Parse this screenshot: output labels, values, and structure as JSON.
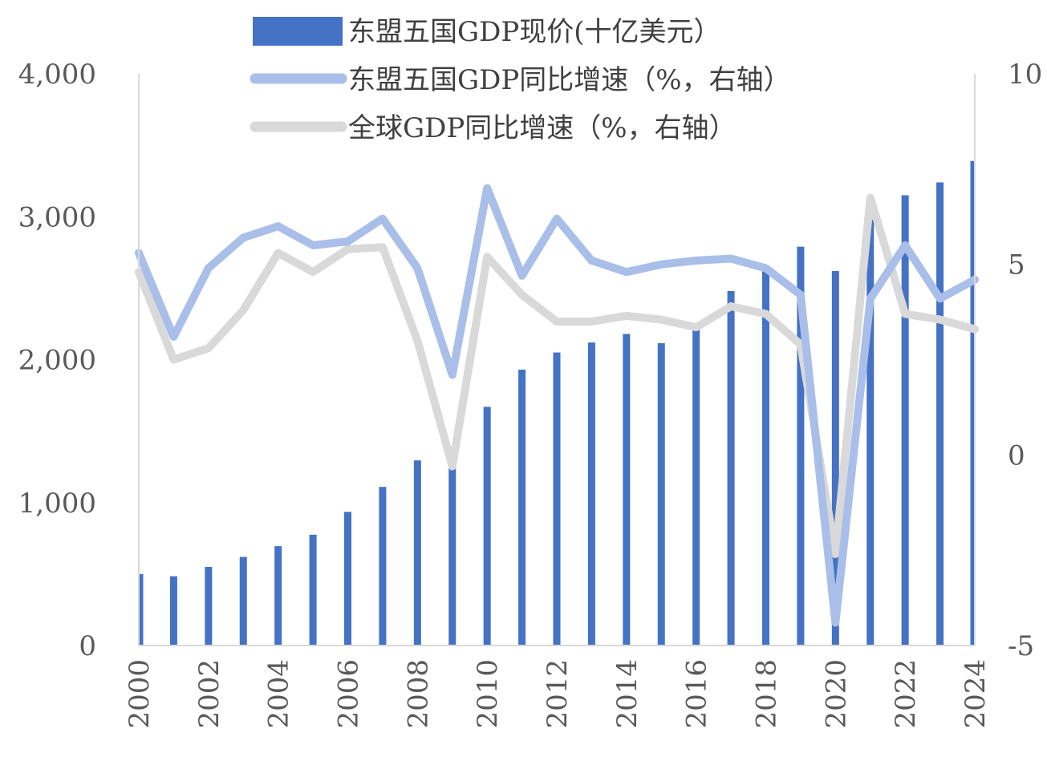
{
  "chart_data": {
    "type": "bar",
    "categories": [
      "2000",
      "2001",
      "2002",
      "2003",
      "2004",
      "2005",
      "2006",
      "2007",
      "2008",
      "2009",
      "2010",
      "2011",
      "2012",
      "2013",
      "2014",
      "2015",
      "2016",
      "2017",
      "2018",
      "2019",
      "2020",
      "2021",
      "2022",
      "2023",
      "2024"
    ],
    "x_tick_labels": [
      "2000",
      "2002",
      "2004",
      "2006",
      "2008",
      "2010",
      "2012",
      "2014",
      "2016",
      "2018",
      "2020",
      "2022",
      "2024"
    ],
    "series": [
      {
        "name": "东盟五国GDP现价(十亿美元）",
        "type": "bar",
        "axis": "left",
        "color": "#4472C4",
        "values": [
          500,
          485,
          550,
          620,
          695,
          775,
          935,
          1110,
          1295,
          1260,
          1670,
          1930,
          2050,
          2120,
          2180,
          2115,
          2220,
          2480,
          2650,
          2790,
          2620,
          2980,
          3150,
          3240,
          3390
        ]
      },
      {
        "name": "东盟五国GDP同比增速（%，右轴）",
        "type": "line",
        "axis": "right",
        "color": "#A9BFE9",
        "values": [
          5.3,
          3.1,
          4.9,
          5.7,
          6.0,
          5.5,
          5.6,
          6.2,
          4.9,
          2.1,
          7.0,
          4.7,
          6.2,
          5.1,
          4.8,
          5.0,
          5.1,
          5.15,
          4.9,
          4.2,
          -4.4,
          4.1,
          5.5,
          4.1,
          4.6
        ]
      },
      {
        "name": "全球GDP同比增速（%，右轴）",
        "type": "line",
        "axis": "right",
        "color": "#D9D9D9",
        "values": [
          4.8,
          2.5,
          2.8,
          3.8,
          5.3,
          4.8,
          5.4,
          5.45,
          3.0,
          -0.3,
          5.2,
          4.2,
          3.5,
          3.5,
          3.65,
          3.55,
          3.35,
          3.9,
          3.7,
          2.9,
          -2.6,
          6.75,
          3.7,
          3.55,
          3.3
        ]
      }
    ],
    "ylim_left": [
      0,
      4000
    ],
    "ylim_right": [
      -5,
      10
    ],
    "yticks_left": [
      "0",
      "1,000",
      "2,000",
      "3,000",
      "4,000"
    ],
    "yticks_right": [
      "-5",
      "0",
      "5",
      "10"
    ],
    "grid": false,
    "legend_position": "top"
  }
}
